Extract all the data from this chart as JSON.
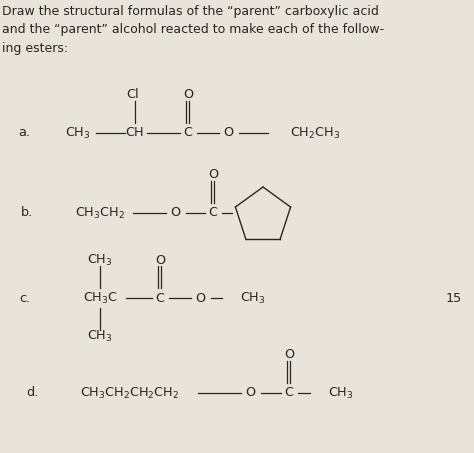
{
  "bg_color": "#c8c0b0",
  "paper_color": "#e8e4dc",
  "text_color": "#2a2520",
  "title_text": "Draw the structural formulas of the “parent” carboxylic acid\nand the “parent” alcohol reacted to make each of the follow-\ning esters:",
  "label_a": "a.",
  "label_b": "b.",
  "label_c": "c.",
  "label_d": "d.",
  "page_number": "15",
  "title_fontsize": 9.0,
  "formula_fontsize": 9.2
}
